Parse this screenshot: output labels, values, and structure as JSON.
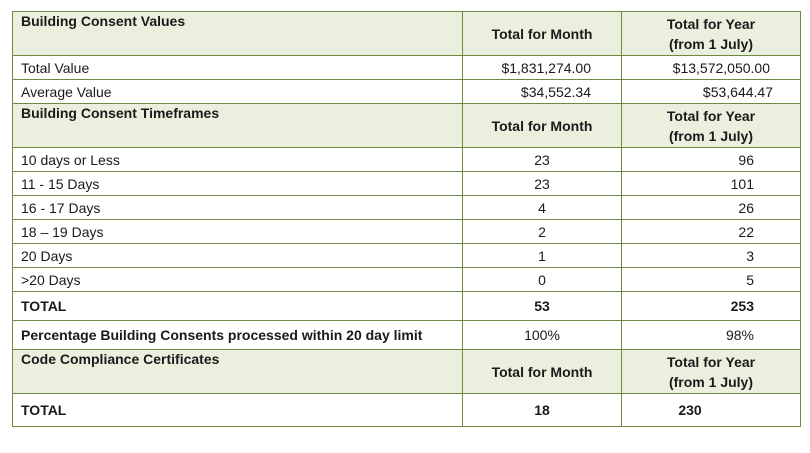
{
  "consent_values": {
    "heading": "Building Consent Values",
    "col_month": "Total for Month",
    "col_year_line1": "Total for Year",
    "col_year_line2": "(from 1 July)",
    "rows": [
      {
        "label": "Total Value",
        "month": "$1,831,274.00",
        "year": "$13,572,050.00"
      },
      {
        "label": "Average Value",
        "month": "$34,552.34",
        "year": "$53,644.47"
      }
    ]
  },
  "timeframes": {
    "heading": "Building Consent Timeframes",
    "col_month": "Total for Month",
    "col_year_line1": "Total for Year",
    "col_year_line2": "(from 1 July)",
    "rows": [
      {
        "label": "10 days or Less",
        "month": "23",
        "year": "96"
      },
      {
        "label": "11 - 15 Days",
        "month": "23",
        "year": "101"
      },
      {
        "label": "16 - 17 Days",
        "month": "4",
        "year": "26"
      },
      {
        "label": "18 – 19 Days",
        "month": "2",
        "year": "22"
      },
      {
        "label": "20 Days",
        "month": "1",
        "year": "3"
      },
      {
        "label": ">20 Days",
        "month": "0",
        "year": "5"
      }
    ],
    "total": {
      "label": "TOTAL",
      "month": "53",
      "year": "253"
    },
    "percentage": {
      "label": "Percentage Building Consents processed within 20 day limit",
      "month": "100%",
      "year": "98%"
    }
  },
  "ccc": {
    "heading": "Code Compliance Certificates",
    "col_month": "Total for Month",
    "col_year_line1": "Total for Year",
    "col_year_line2": "(from 1 July)",
    "total": {
      "label": "TOTAL",
      "month": "18",
      "year": "230"
    }
  },
  "colors": {
    "border": "#6e8a3e",
    "header_bg": "#ebf0de"
  }
}
